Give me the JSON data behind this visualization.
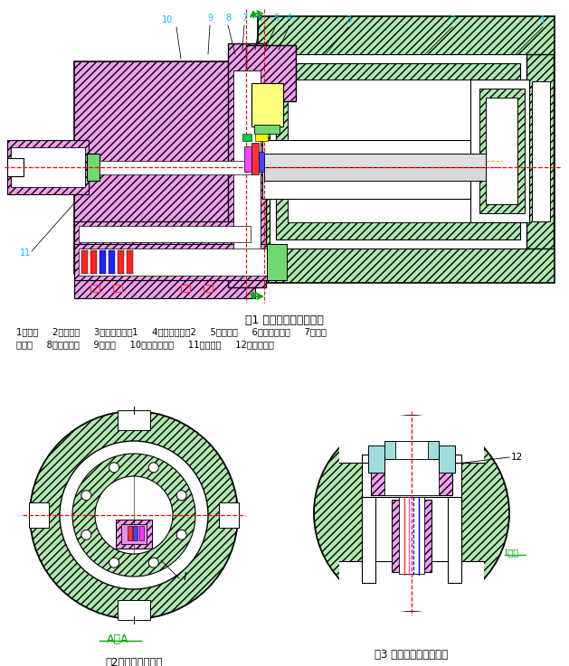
{
  "title": "图1 穿孔机构结构示意图",
  "caption1": "1、柱塞     2、穿孔缸     3、柱塞加长套1     4、柱塞加长套2     5、定位销     6、穿孔针垫块     7、穿孔",
  "caption2": "针压环     8、穿孔针座     9、托板     10、挤压杆机构     11、穿孔针     12、直线导轨",
  "fig2_title": "图2穿孔机构剖视图",
  "fig3_title": "图3 穿孔机构局部放大图",
  "fig2_sub": "A－A",
  "lc": "#00BFFF",
  "rd": "#FF0000",
  "gr": "#00AA00",
  "bg": "#FFFFFF",
  "mg_face": "#F0A0F0",
  "gn_face": "#B0E8B0",
  "gn_face2": "#70D870",
  "yw_face": "#FFFF80"
}
